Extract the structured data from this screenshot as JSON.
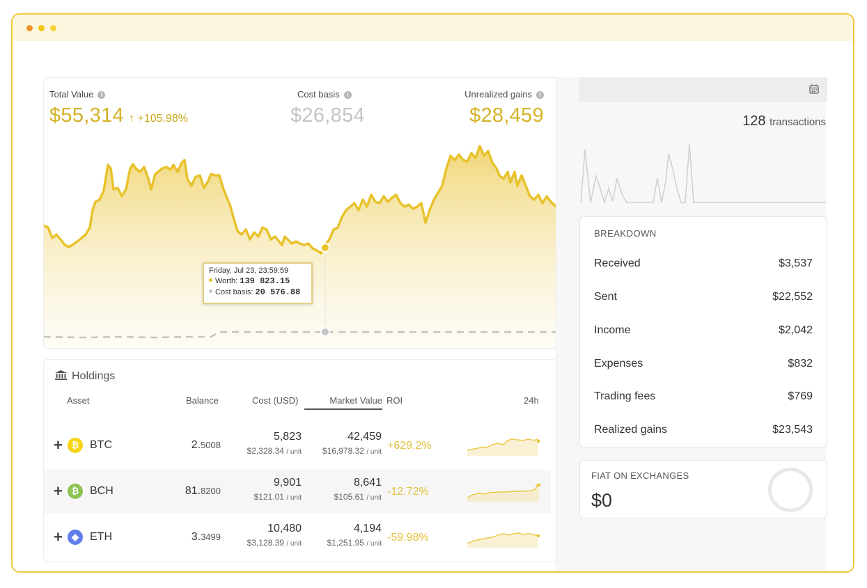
{
  "summary": {
    "total_value_label": "Total Value",
    "total_value": "$55,314",
    "total_change": "↑ +105.98%",
    "cost_basis_label": "Cost basis",
    "cost_basis": "$26,854",
    "unrealized_label": "Unrealized gains",
    "unrealized": "$28,459"
  },
  "tooltip": {
    "date": "Friday, Jul 23, 23:59:59",
    "worth_label": "Worth:",
    "worth": "139 823.15",
    "cost_label": "Cost basis:",
    "cost": "20 576.88"
  },
  "holdings": {
    "title": "Holdings",
    "headers": {
      "asset": "Asset",
      "balance": "Balance",
      "cost": "Cost (USD)",
      "market_value": "Market Value",
      "roi": "ROI",
      "h24": "24h"
    },
    "rows": [
      {
        "symbol": "BTC",
        "icon": "bitcoin-icon",
        "balance_int": "2.",
        "balance_dec": "5008",
        "cost": "5,823",
        "cost_unit": "$2,328.34",
        "mv": "42,459",
        "mv_unit": "$16,978.32",
        "roi": "+629.2%"
      },
      {
        "symbol": "BCH",
        "icon": "bitcoin-cash-icon",
        "balance_int": "81.",
        "balance_dec": "8200",
        "cost": "9,901",
        "cost_unit": "$121.01",
        "mv": "8,641",
        "mv_unit": "$105.61",
        "roi": "-12.72%"
      },
      {
        "symbol": "ETH",
        "icon": "ethereum-icon",
        "balance_int": "3.",
        "balance_dec": "3499",
        "cost": "10,480",
        "cost_unit": "$3,128.39",
        "mv": "4,194",
        "mv_unit": "$1,251.95",
        "roi": "-59.98%"
      }
    ],
    "unit_suffix": "/ unit"
  },
  "transactions": {
    "count": "128",
    "label": "transactions"
  },
  "breakdown": {
    "title": "BREAKDOWN",
    "rows": [
      {
        "label": "Received",
        "value": "$3,537"
      },
      {
        "label": "Sent",
        "value": "$22,552"
      },
      {
        "label": "Income",
        "value": "$2,042"
      },
      {
        "label": "Expenses",
        "value": "$832"
      },
      {
        "label": "Trading fees",
        "value": "$769"
      },
      {
        "label": "Realized gains",
        "value": "$23,543"
      }
    ]
  },
  "fiat": {
    "title": "FIAT ON EXCHANGES",
    "value": "$0"
  },
  "colors": {
    "accent": "#e8c22c",
    "accent_text": "#d4b227",
    "muted": "#c4c4c4",
    "roi_text": "#e3c13a"
  }
}
